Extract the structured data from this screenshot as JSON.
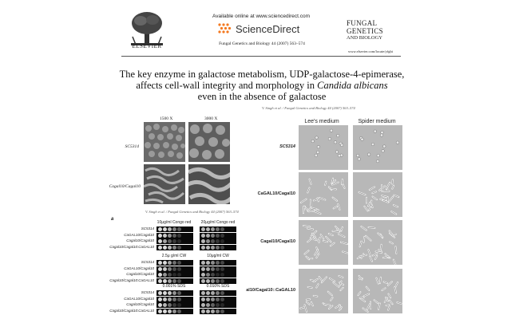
{
  "header": {
    "publisher": "ELSEVIER",
    "available_online": "Available online at www.sciencedirect.com",
    "sciencedirect": "ScienceDirect",
    "journal_ref": "Fungal Genetics and Biology 44 (2007) 563–574",
    "fgb_top": "FUNGAL GENETICS",
    "fgb_bottom": "AND BIOLOGY",
    "url": "www.elsevier.com/locate/yfgbi"
  },
  "title": {
    "line1": "The key enzyme in galactose metabolism, UDP-galactose-4-epimerase,",
    "line2_prefix": "affects cell-wall integrity and morphology in ",
    "line2_italic": "Candida albicans",
    "line3": "even in the absence of galactose"
  },
  "sem_panel": {
    "mag1": "1500 X",
    "mag2": "3000 X",
    "row1": "SC5314",
    "row2": "Cagal10/Cagal10",
    "caption": "V. Singh et al. / Fungal Genetics and Biology 44 (2007) 563–574"
  },
  "spot_panel": {
    "label": "a",
    "groups": [
      {
        "left": "10μg/ml Congo red",
        "right": "20μg/ml Congo red"
      },
      {
        "left": "2.5μ g/ml CW",
        "right": "10μg/ml CW"
      },
      {
        "left": "0.001% SDS",
        "right": "0.010% SDS"
      }
    ],
    "strains": [
      "SC5314",
      "CaGAL10/Cagal10",
      "Cagal10/Cagal10",
      "Cagal10/Cagal10:CaGAL10"
    ]
  },
  "micro_panel": {
    "caption": "V. Singh et al. / Fungal Genetics and Biology 44 (2007) 563–574",
    "col1": "Lee's medium",
    "col2": "Spider  medium",
    "rows": [
      "SC5314",
      "CaGAL10/Cagal10",
      "Cagal10/Cagal10",
      "al10/Cagal10::CaGAL10"
    ]
  }
}
